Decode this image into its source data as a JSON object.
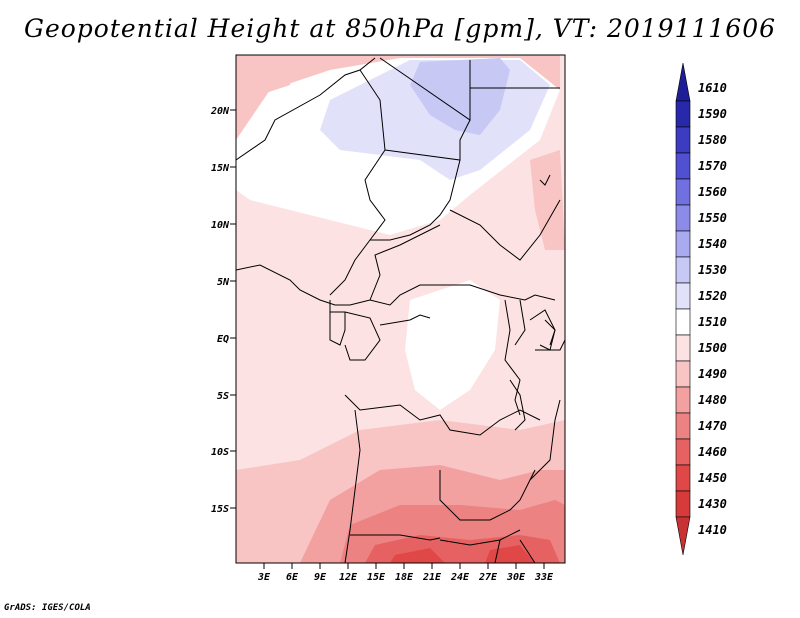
{
  "title": "Geopotential Height at 850hPa [gpm], VT: 2019111606",
  "credit": "GrADS: IGES/COLA",
  "lat_labels": [
    "20N",
    "15N",
    "10N",
    "5N",
    "EQ",
    "5S",
    "10S",
    "15S"
  ],
  "lon_labels": [
    "3E",
    "6E",
    "9E",
    "12E",
    "15E",
    "18E",
    "21E",
    "24E",
    "27E",
    "30E",
    "33E"
  ],
  "colorbar": {
    "levels": [
      "1410",
      "1430",
      "1450",
      "1460",
      "1470",
      "1480",
      "1490",
      "1500",
      "1510",
      "1520",
      "1530",
      "1540",
      "1550",
      "1560",
      "1570",
      "1580",
      "1590",
      "1610"
    ],
    "colors": [
      "#c83232",
      "#d73a3a",
      "#e04848",
      "#e66262",
      "#ec8282",
      "#f2a0a0",
      "#f8c4c4",
      "#fce2e2",
      "#ffffff",
      "#e1e1fa",
      "#c8c8f5",
      "#aaaaf0",
      "#8c8ce8",
      "#7070e0",
      "#5050d0",
      "#3c3cc0",
      "#2828aa",
      "#1e1e96"
    ]
  }
}
